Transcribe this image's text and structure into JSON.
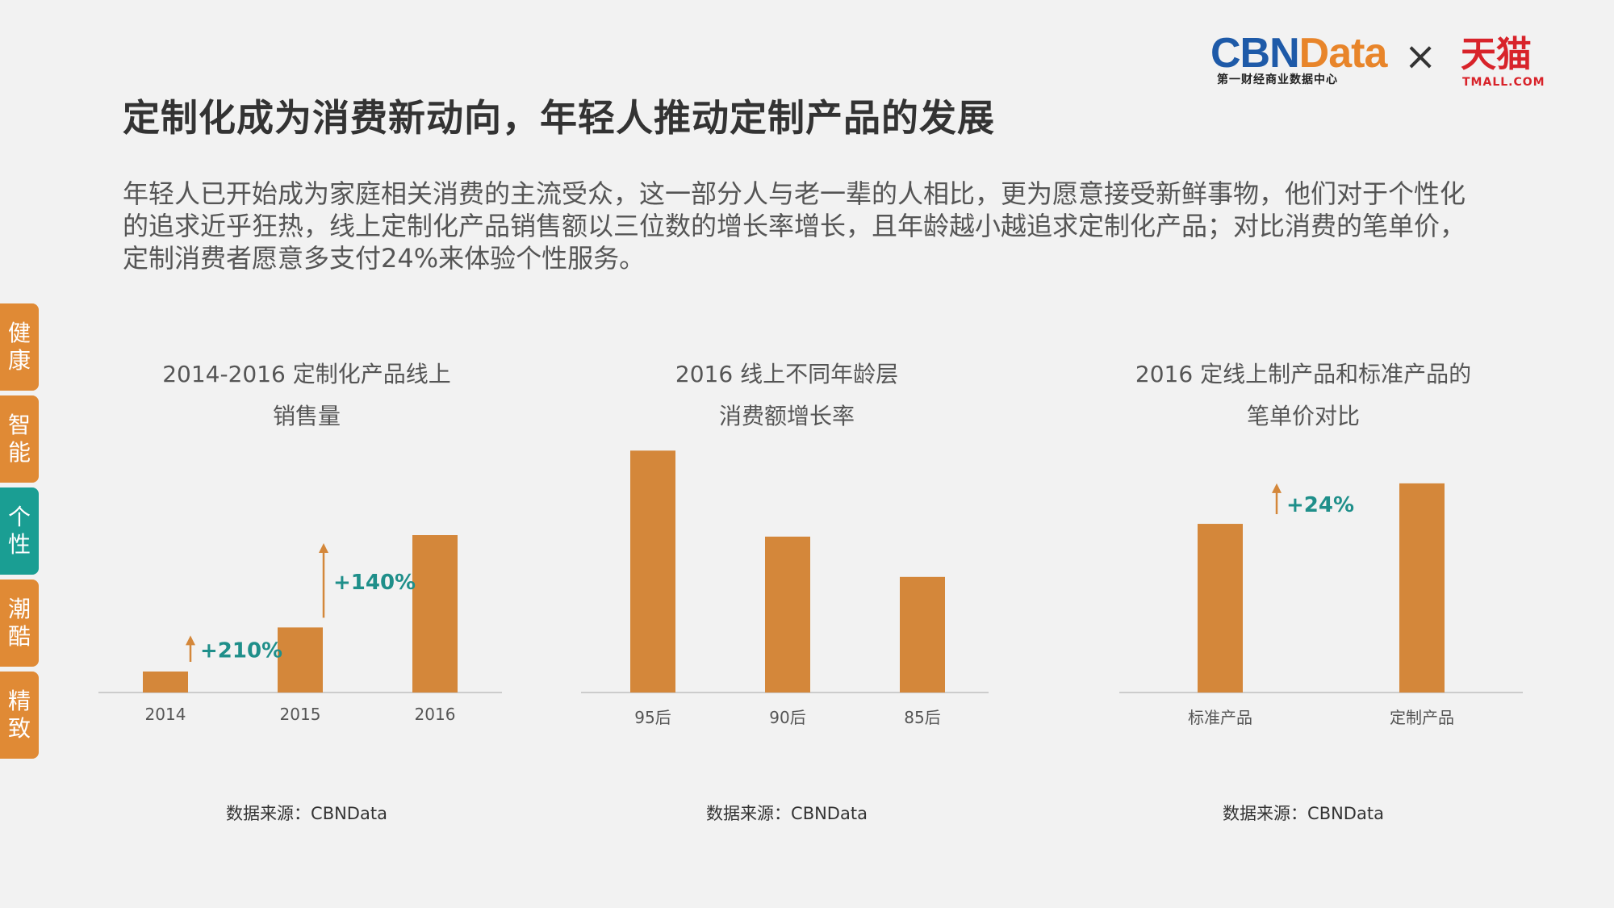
{
  "logo": {
    "cbn_blue": "CBN",
    "cbn_orange": "Data",
    "cbn_sub": "第一财经商业数据中心",
    "times": "×",
    "tmall": "天猫",
    "tmall_sub": "TMALL.COM"
  },
  "title": "定制化成为消费新动向，年轻人推动定制产品的发展",
  "description": "年轻人已开始成为家庭相关消费的主流受众，这一部分人与老一辈的人相比，更为愿意接受新鲜事物，他们对于个性化的追求近乎狂热，线上定制化产品销售额以三位数的增长率增长，且年龄越小越追求定制化产品；对比消费的笔单价，定制消费者愿意多支付24%来体验个性服务。",
  "side_tabs": [
    {
      "char1": "健",
      "char2": "康",
      "active": false
    },
    {
      "char1": "智",
      "char2": "能",
      "active": false
    },
    {
      "char1": "个",
      "char2": "性",
      "active": true
    },
    {
      "char1": "潮",
      "char2": "酷",
      "active": false
    },
    {
      "char1": "精",
      "char2": "致",
      "active": false
    }
  ],
  "colors": {
    "bar": "#d4873a",
    "accent_text": "#1f8f8a",
    "side_tab": "#e08a35",
    "side_tab_active": "#1a9e93"
  },
  "chart_data": [
    {
      "type": "bar",
      "title_line1": "2014-2016 定制化产品线上",
      "title_line2": "销售量",
      "categories": [
        "2014",
        "2015",
        "2016"
      ],
      "values": [
        10,
        31,
        75
      ],
      "ylim": [
        0,
        100
      ],
      "annotations": [
        {
          "text": "+210%",
          "between": [
            0,
            1
          ]
        },
        {
          "text": "+140%",
          "between": [
            1,
            2
          ]
        }
      ],
      "source": "数据来源：CBNData"
    },
    {
      "type": "bar",
      "title_line1": "2016 线上不同年龄层",
      "title_line2": "消费额增长率",
      "categories": [
        "95后",
        "90后",
        "85后"
      ],
      "values": [
        90,
        58,
        43
      ],
      "ylim": [
        0,
        100
      ],
      "annotations": [],
      "source": "数据来源：CBNData"
    },
    {
      "type": "bar",
      "title_line1": "2016 定线上制产品和标准产品的",
      "title_line2": "笔单价对比",
      "categories": [
        "标准产品",
        "定制产品"
      ],
      "values": [
        100,
        124
      ],
      "ylim": [
        0,
        145
      ],
      "annotations": [
        {
          "text": "+24%",
          "between": [
            0,
            1
          ]
        }
      ],
      "source": "数据来源：CBNData"
    }
  ]
}
